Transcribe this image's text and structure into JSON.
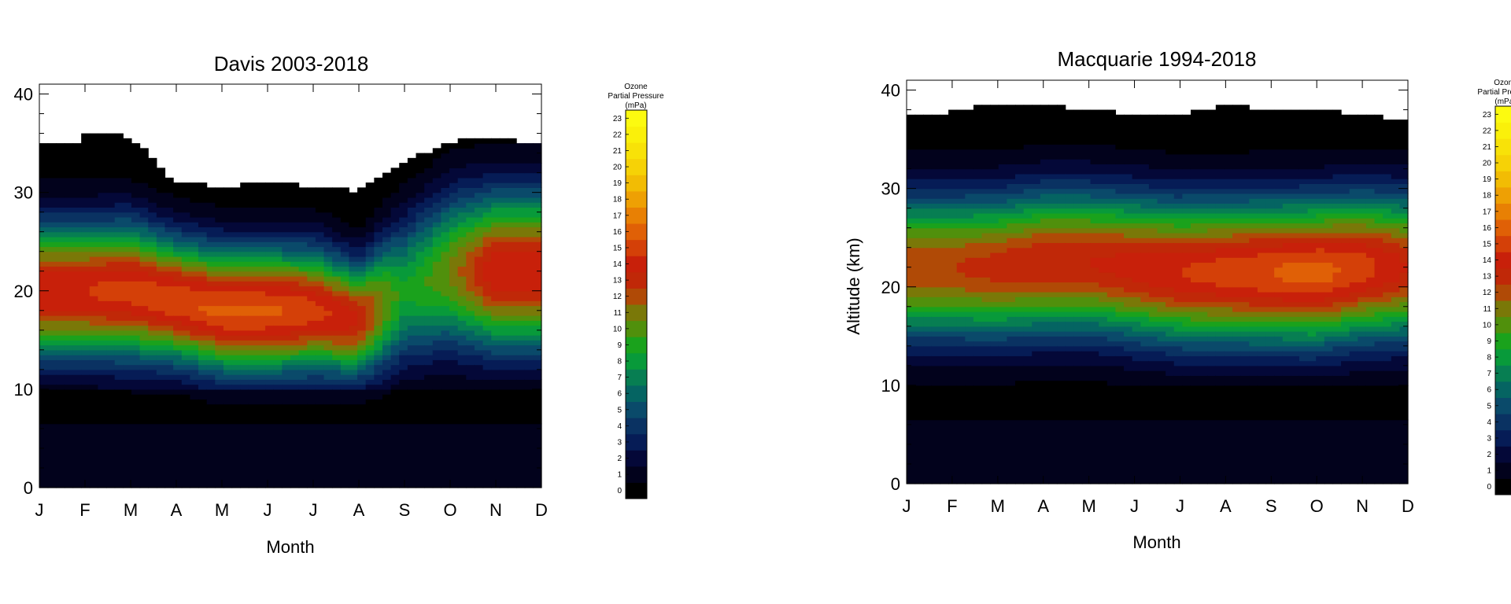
{
  "chart_data": [
    {
      "type": "heatmap",
      "title": "Davis  2003-2018",
      "xlabel": "Month",
      "ylabel": "",
      "x_categories": [
        "J",
        "F",
        "M",
        "A",
        "M",
        "J",
        "J",
        "A",
        "S",
        "O",
        "N",
        "D"
      ],
      "y_ticks": [
        0,
        10,
        20,
        30,
        40
      ],
      "ylim": [
        0,
        41
      ],
      "xlim": [
        1,
        12
      ],
      "top_boundary_km": [
        35.2,
        36.2,
        35.6,
        31.0,
        30.6,
        31.0,
        30.6,
        30.1,
        33.0,
        35.2,
        35.6,
        34.8
      ],
      "ozone_peak_mPa": [
        15.0,
        15.0,
        15.5,
        15.8,
        16.2,
        16.2,
        15.5,
        14.0,
        9.0,
        11.0,
        15.0,
        15.0
      ],
      "ozone_peak_altitude_km": [
        20.0,
        20.0,
        20.0,
        19.0,
        18.0,
        18.0,
        18.0,
        17.0,
        20.0,
        22.0,
        22.0,
        22.0
      ],
      "ozone_width_km": [
        6.5,
        6.5,
        6.5,
        6.0,
        6.0,
        6.0,
        6.0,
        5.5,
        7.0,
        7.5,
        7.5,
        7.5
      ],
      "ozone_min_mPa": 0,
      "ozone_max_mPa": 23
    },
    {
      "type": "heatmap",
      "title": "Macquarie  1994-2018",
      "xlabel": "Month",
      "ylabel": "Altitude (km)",
      "x_categories": [
        "J",
        "F",
        "M",
        "A",
        "M",
        "J",
        "J",
        "A",
        "S",
        "O",
        "N",
        "D"
      ],
      "y_ticks": [
        0,
        10,
        20,
        30,
        40
      ],
      "ylim": [
        0,
        41
      ],
      "xlim": [
        1,
        12
      ],
      "top_boundary_km": [
        37.5,
        38.0,
        38.5,
        38.5,
        38.0,
        37.5,
        37.5,
        38.5,
        38.0,
        38.0,
        37.5,
        37.0
      ],
      "ozone_peak_mPa": [
        13.0,
        13.0,
        13.5,
        14.0,
        14.0,
        14.5,
        15.0,
        15.5,
        16.0,
        16.5,
        15.5,
        14.0
      ],
      "ozone_peak_altitude_km": [
        22.0,
        22.0,
        22.0,
        22.5,
        22.5,
        22.0,
        21.5,
        21.5,
        21.5,
        21.5,
        22.0,
        22.0
      ],
      "ozone_width_km": [
        7.0,
        7.0,
        7.0,
        7.0,
        7.0,
        7.0,
        7.0,
        7.0,
        7.0,
        7.0,
        7.0,
        7.0
      ],
      "ozone_min_mPa": 0,
      "ozone_max_mPa": 23
    }
  ],
  "colorbar": {
    "title_lines": [
      "Ozone",
      "Partial Pressure",
      "(mPa)"
    ],
    "ticks": [
      "0",
      "1",
      "2",
      "3",
      "4",
      "5",
      "6",
      "7",
      "8",
      "9",
      "10",
      "11",
      "12",
      "13",
      "14",
      "15",
      "16",
      "17",
      "18",
      "19",
      "20",
      "21",
      "22",
      "23"
    ],
    "colors": [
      "#000000",
      "#02021c",
      "#040838",
      "#061c56",
      "#0a3262",
      "#0a4a6a",
      "#056462",
      "#077e52",
      "#089a3a",
      "#1aa21c",
      "#50900c",
      "#7a7808",
      "#b04a06",
      "#c02808",
      "#c8200a",
      "#d44008",
      "#e06006",
      "#e88004",
      "#eea004",
      "#f2bc04",
      "#f6d206",
      "#f8e208",
      "#faf00a",
      "#fcfa10"
    ]
  }
}
